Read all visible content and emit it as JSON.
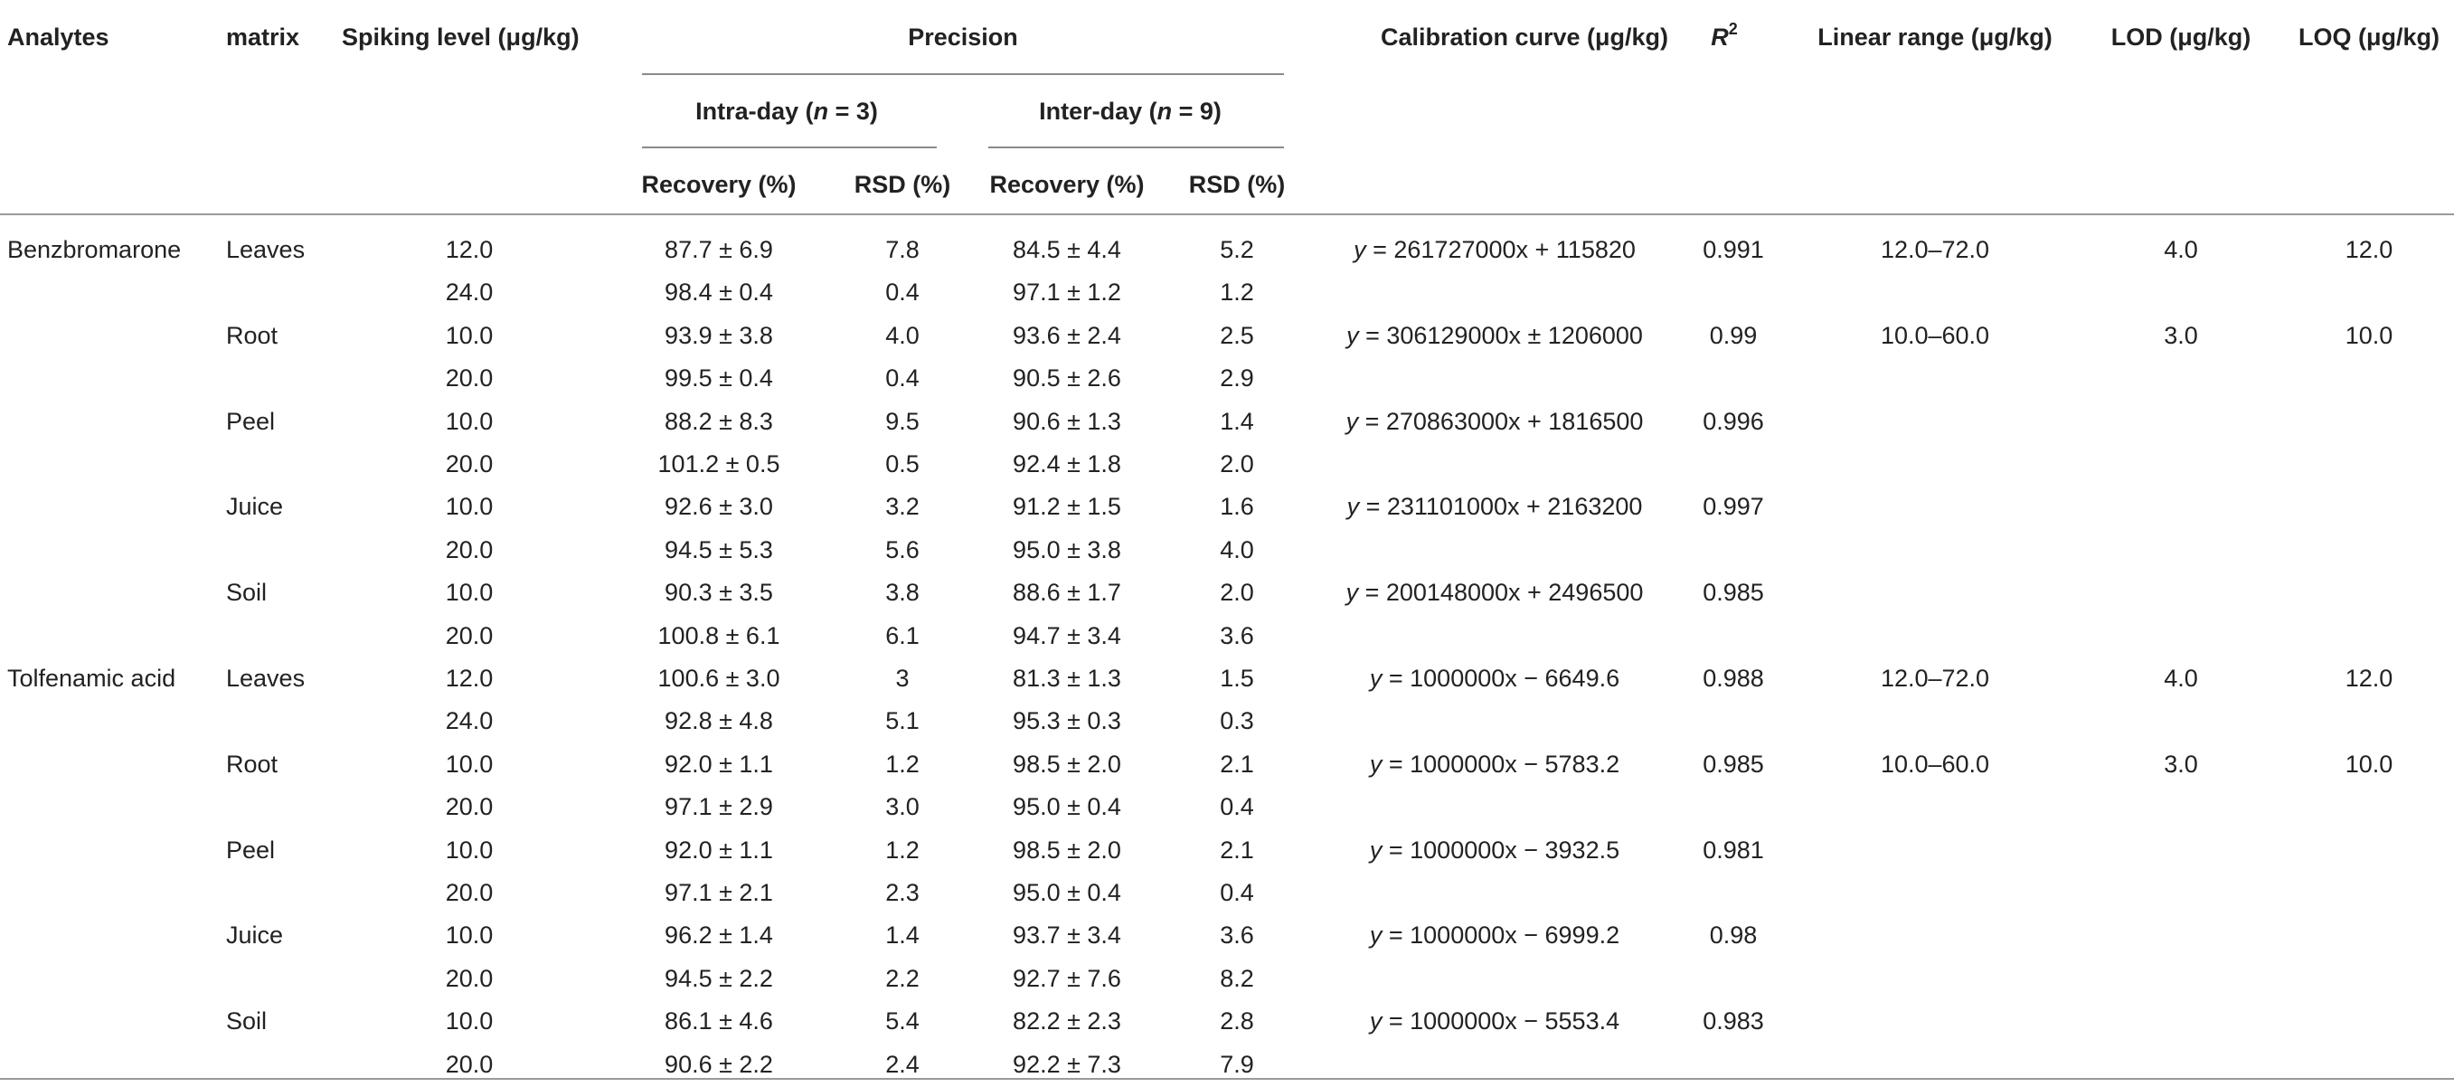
{
  "headers": {
    "analytes": "Analytes",
    "matrix": "matrix",
    "spiking_level": "Spiking level (μg/kg)",
    "precision": "Precision",
    "intra_day_prefix": "Intra-day (",
    "intra_day_n": "n",
    "intra_day_suffix": " = 3)",
    "inter_day_prefix": "Inter-day (",
    "inter_day_n": "n",
    "inter_day_suffix": " = 9)",
    "recovery_intra": "Recovery (%)",
    "rsd_intra": "RSD (%)",
    "recovery_inter": "Recovery (%)",
    "rsd_inter": "RSD (%)",
    "calibration_curve": "Calibration curve (μg/kg)",
    "r2_base": "R",
    "r2_sup": "2",
    "linear_range": "Linear range (μg/kg)",
    "lod": "LOD (μg/kg)",
    "loq": "LOQ (μg/kg)"
  },
  "rows": [
    {
      "analyte": "Benzbromarone",
      "matrix": "Leaves",
      "spiking": "12.0",
      "rec_intra": "87.7 ± 6.9",
      "rsd_intra": "7.8",
      "rec_inter": "84.5 ± 4.4",
      "rsd_inter": "5.2",
      "cal_y": "y",
      "cal_rest": " = 261727000x + 115820",
      "r2": "0.991",
      "linear": "12.0–72.0",
      "lod": "4.0",
      "loq": "12.0"
    },
    {
      "analyte": "",
      "matrix": "",
      "spiking": "24.0",
      "rec_intra": "98.4 ± 0.4",
      "rsd_intra": "0.4",
      "rec_inter": "97.1 ± 1.2",
      "rsd_inter": "1.2",
      "cal_y": "",
      "cal_rest": "",
      "r2": "",
      "linear": "",
      "lod": "",
      "loq": ""
    },
    {
      "analyte": "",
      "matrix": "Root",
      "spiking": "10.0",
      "rec_intra": "93.9 ± 3.8",
      "rsd_intra": "4.0",
      "rec_inter": "93.6 ± 2.4",
      "rsd_inter": "2.5",
      "cal_y": "y",
      "cal_rest": " = 306129000x ± 1206000",
      "r2": "0.99",
      "linear": "10.0–60.0",
      "lod": "3.0",
      "loq": "10.0"
    },
    {
      "analyte": "",
      "matrix": "",
      "spiking": "20.0",
      "rec_intra": "99.5 ± 0.4",
      "rsd_intra": "0.4",
      "rec_inter": "90.5 ± 2.6",
      "rsd_inter": "2.9",
      "cal_y": "",
      "cal_rest": "",
      "r2": "",
      "linear": "",
      "lod": "",
      "loq": ""
    },
    {
      "analyte": "",
      "matrix": "Peel",
      "spiking": "10.0",
      "rec_intra": "88.2 ± 8.3",
      "rsd_intra": "9.5",
      "rec_inter": "90.6 ± 1.3",
      "rsd_inter": "1.4",
      "cal_y": "y",
      "cal_rest": " = 270863000x + 1816500",
      "r2": "0.996",
      "linear": "",
      "lod": "",
      "loq": ""
    },
    {
      "analyte": "",
      "matrix": "",
      "spiking": "20.0",
      "rec_intra": "101.2 ± 0.5",
      "rsd_intra": "0.5",
      "rec_inter": "92.4 ± 1.8",
      "rsd_inter": "2.0",
      "cal_y": "",
      "cal_rest": "",
      "r2": "",
      "linear": "",
      "lod": "",
      "loq": ""
    },
    {
      "analyte": "",
      "matrix": "Juice",
      "spiking": "10.0",
      "rec_intra": "92.6 ± 3.0",
      "rsd_intra": "3.2",
      "rec_inter": "91.2 ± 1.5",
      "rsd_inter": "1.6",
      "cal_y": "y",
      "cal_rest": " = 231101000x + 2163200",
      "r2": "0.997",
      "linear": "",
      "lod": "",
      "loq": ""
    },
    {
      "analyte": "",
      "matrix": "",
      "spiking": "20.0",
      "rec_intra": "94.5 ± 5.3",
      "rsd_intra": "5.6",
      "rec_inter": "95.0 ± 3.8",
      "rsd_inter": "4.0",
      "cal_y": "",
      "cal_rest": "",
      "r2": "",
      "linear": "",
      "lod": "",
      "loq": ""
    },
    {
      "analyte": "",
      "matrix": "Soil",
      "spiking": "10.0",
      "rec_intra": "90.3 ± 3.5",
      "rsd_intra": "3.8",
      "rec_inter": "88.6 ± 1.7",
      "rsd_inter": "2.0",
      "cal_y": "y",
      "cal_rest": " = 200148000x + 2496500",
      "r2": "0.985",
      "linear": "",
      "lod": "",
      "loq": ""
    },
    {
      "analyte": "",
      "matrix": "",
      "spiking": "20.0",
      "rec_intra": "100.8 ± 6.1",
      "rsd_intra": "6.1",
      "rec_inter": "94.7 ± 3.4",
      "rsd_inter": "3.6",
      "cal_y": "",
      "cal_rest": "",
      "r2": "",
      "linear": "",
      "lod": "",
      "loq": ""
    },
    {
      "analyte": "Tolfenamic acid",
      "matrix": "Leaves",
      "spiking": "12.0",
      "rec_intra": "100.6 ± 3.0",
      "rsd_intra": "3",
      "rec_inter": "81.3 ± 1.3",
      "rsd_inter": "1.5",
      "cal_y": "y",
      "cal_rest": " = 1000000x − 6649.6",
      "r2": "0.988",
      "linear": "12.0–72.0",
      "lod": "4.0",
      "loq": "12.0"
    },
    {
      "analyte": "",
      "matrix": "",
      "spiking": "24.0",
      "rec_intra": "92.8 ± 4.8",
      "rsd_intra": "5.1",
      "rec_inter": "95.3 ± 0.3",
      "rsd_inter": "0.3",
      "cal_y": "",
      "cal_rest": "",
      "r2": "",
      "linear": "",
      "lod": "",
      "loq": ""
    },
    {
      "analyte": "",
      "matrix": "Root",
      "spiking": "10.0",
      "rec_intra": "92.0 ± 1.1",
      "rsd_intra": "1.2",
      "rec_inter": "98.5 ± 2.0",
      "rsd_inter": "2.1",
      "cal_y": "y",
      "cal_rest": " = 1000000x − 5783.2",
      "r2": "0.985",
      "linear": "10.0–60.0",
      "lod": "3.0",
      "loq": "10.0"
    },
    {
      "analyte": "",
      "matrix": "",
      "spiking": "20.0",
      "rec_intra": "97.1 ± 2.9",
      "rsd_intra": "3.0",
      "rec_inter": "95.0 ± 0.4",
      "rsd_inter": "0.4",
      "cal_y": "",
      "cal_rest": "",
      "r2": "",
      "linear": "",
      "lod": "",
      "loq": ""
    },
    {
      "analyte": "",
      "matrix": "Peel",
      "spiking": "10.0",
      "rec_intra": "92.0 ± 1.1",
      "rsd_intra": "1.2",
      "rec_inter": "98.5 ± 2.0",
      "rsd_inter": "2.1",
      "cal_y": "y",
      "cal_rest": " = 1000000x − 3932.5",
      "r2": "0.981",
      "linear": "",
      "lod": "",
      "loq": ""
    },
    {
      "analyte": "",
      "matrix": "",
      "spiking": "20.0",
      "rec_intra": "97.1 ± 2.1",
      "rsd_intra": "2.3",
      "rec_inter": "95.0 ± 0.4",
      "rsd_inter": "0.4",
      "cal_y": "",
      "cal_rest": "",
      "r2": "",
      "linear": "",
      "lod": "",
      "loq": ""
    },
    {
      "analyte": "",
      "matrix": "Juice",
      "spiking": "10.0",
      "rec_intra": "96.2 ± 1.4",
      "rsd_intra": "1.4",
      "rec_inter": "93.7 ± 3.4",
      "rsd_inter": "3.6",
      "cal_y": "y",
      "cal_rest": " = 1000000x − 6999.2",
      "r2": "0.98",
      "linear": "",
      "lod": "",
      "loq": ""
    },
    {
      "analyte": "",
      "matrix": "",
      "spiking": "20.0",
      "rec_intra": "94.5 ± 2.2",
      "rsd_intra": "2.2",
      "rec_inter": "92.7 ± 7.6",
      "rsd_inter": "8.2",
      "cal_y": "",
      "cal_rest": "",
      "r2": "",
      "linear": "",
      "lod": "",
      "loq": ""
    },
    {
      "analyte": "",
      "matrix": "Soil",
      "spiking": "10.0",
      "rec_intra": "86.1 ± 4.6",
      "rsd_intra": "5.4",
      "rec_inter": "82.2 ± 2.3",
      "rsd_inter": "2.8",
      "cal_y": "y",
      "cal_rest": " = 1000000x − 5553.4",
      "r2": "0.983",
      "linear": "",
      "lod": "",
      "loq": ""
    },
    {
      "analyte": "",
      "matrix": "",
      "spiking": "20.0",
      "rec_intra": "90.6 ± 2.2",
      "rsd_intra": "2.4",
      "rec_inter": "92.2 ± 7.3",
      "rsd_inter": "7.9",
      "cal_y": "",
      "cal_rest": "",
      "r2": "",
      "linear": "",
      "lod": "",
      "loq": ""
    }
  ]
}
